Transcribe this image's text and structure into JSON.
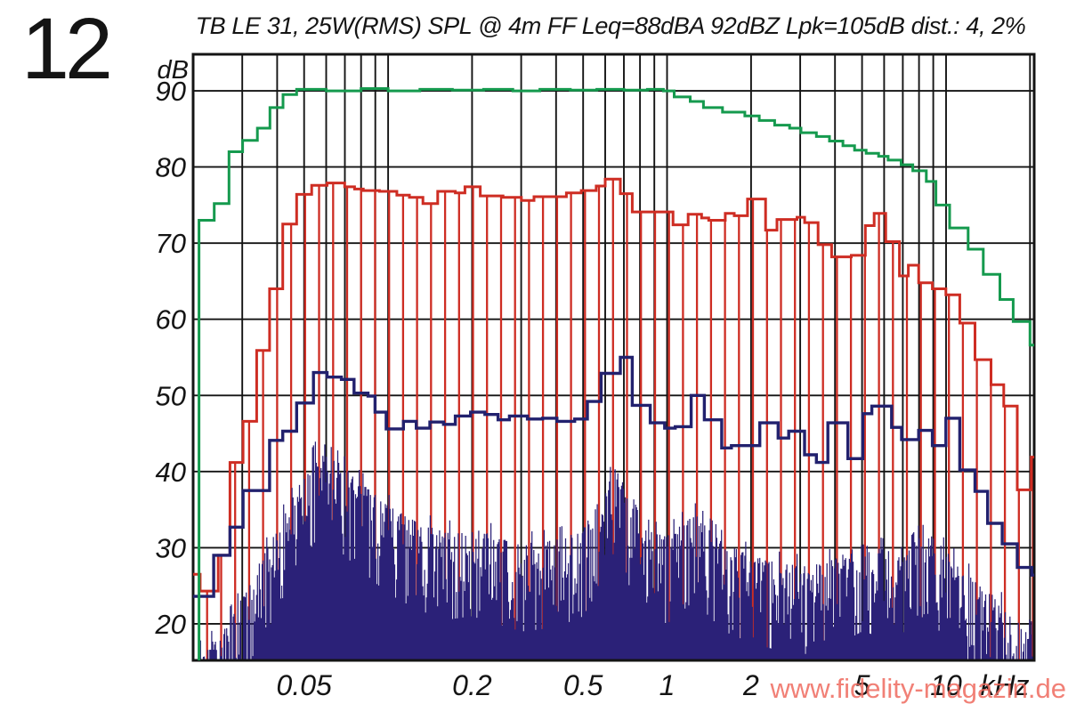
{
  "figure_number": "12",
  "title": "TB LE 31, 25W(RMS) SPL @ 4m FF Leq=88dBA 92dBZ Lpk=105dB dist.: 4, 2%",
  "watermark": "www.fidelity-magazin.de",
  "colors": {
    "green": "#159a4e",
    "red": "#ce2d23",
    "navy": "#22216e",
    "noise": "#2b2178",
    "grid": "#141414",
    "text": "#141414",
    "watermark": "#ef6a5f"
  },
  "chart_data": {
    "type": "line",
    "title": "TB LE 31, 25W(RMS) SPL @ 4m FF Leq=88dBA 92dBZ Lpk=105dB dist.: 4, 2%",
    "x_scale": "log",
    "xlim": [
      0.02,
      20.7
    ],
    "ylim": [
      15.2,
      94.8
    ],
    "x_axis_unit": "kHz",
    "y_axis_unit": "dB",
    "grid": true,
    "legend": "none",
    "x_gridlines": [
      0.03,
      0.04,
      0.05,
      0.06,
      0.07,
      0.08,
      0.09,
      0.1,
      0.2,
      0.3,
      0.4,
      0.5,
      0.6,
      0.7,
      0.8,
      0.9,
      1,
      2,
      3,
      4,
      5,
      6,
      7,
      8,
      9,
      10,
      20
    ],
    "y_gridlines": [
      20,
      30,
      40,
      50,
      60,
      70,
      80,
      90
    ],
    "x_ticks": [
      {
        "value": 0.05,
        "label": "0.05"
      },
      {
        "value": 0.2,
        "label": "0.2"
      },
      {
        "value": 0.5,
        "label": "0.5"
      },
      {
        "value": 1,
        "label": "1"
      },
      {
        "value": 2,
        "label": "2"
      },
      {
        "value": 5,
        "label": "5"
      },
      {
        "value": 10,
        "label": "10"
      }
    ],
    "y_ticks": [
      {
        "value": 90,
        "label": "90"
      },
      {
        "value": 80,
        "label": "80"
      },
      {
        "value": 70,
        "label": "70"
      },
      {
        "value": 60,
        "label": "60"
      },
      {
        "value": 50,
        "label": "50"
      },
      {
        "value": 40,
        "label": "40"
      },
      {
        "value": 30,
        "label": "30"
      },
      {
        "value": 20,
        "label": "20"
      }
    ],
    "series": [
      {
        "name": "green-curve",
        "style": "step",
        "color_key": "green",
        "starts_at_bottom": true,
        "points": [
          [
            0.021,
            73
          ],
          [
            0.0238,
            75.2
          ],
          [
            0.0269,
            82
          ],
          [
            0.0301,
            83.5
          ],
          [
            0.034,
            85.1
          ],
          [
            0.0377,
            87.8
          ],
          [
            0.042,
            89.5
          ],
          [
            0.047,
            90.2
          ],
          [
            0.06,
            90
          ],
          [
            0.08,
            90.3
          ],
          [
            0.1,
            90
          ],
          [
            0.13,
            90.2
          ],
          [
            0.17,
            90.1
          ],
          [
            0.22,
            90.2
          ],
          [
            0.28,
            90
          ],
          [
            0.35,
            90.2
          ],
          [
            0.45,
            90.1
          ],
          [
            0.56,
            90.2
          ],
          [
            0.7,
            90.1
          ],
          [
            0.85,
            90.2
          ],
          [
            0.97,
            90
          ],
          [
            1.06,
            89.2
          ],
          [
            1.21,
            88.6
          ],
          [
            1.35,
            87.8
          ],
          [
            1.58,
            87.2
          ],
          [
            1.9,
            86.7
          ],
          [
            2.14,
            86.1
          ],
          [
            2.43,
            85.5
          ],
          [
            2.75,
            85.1
          ],
          [
            3.02,
            84.5
          ],
          [
            3.43,
            84
          ],
          [
            3.82,
            83.4
          ],
          [
            4.27,
            82.8
          ],
          [
            4.7,
            82.2
          ],
          [
            5.17,
            81.8
          ],
          [
            5.73,
            81.4
          ],
          [
            6.2,
            80.9
          ],
          [
            6.9,
            80.3
          ],
          [
            7.6,
            79.5
          ],
          [
            8.5,
            78.1
          ],
          [
            9.2,
            75
          ],
          [
            10.3,
            72
          ],
          [
            12,
            69.2
          ],
          [
            13.6,
            65.9
          ],
          [
            15.6,
            62.6
          ],
          [
            17.4,
            59.7
          ],
          [
            20,
            56.6
          ]
        ]
      },
      {
        "name": "red-curve",
        "style": "step",
        "color_key": "red",
        "comb": true,
        "comb_interval_octaves": 0.1666667,
        "points": [
          [
            0.02,
            26.5
          ],
          [
            0.0212,
            24.3
          ],
          [
            0.0246,
            29
          ],
          [
            0.0271,
            41.2
          ],
          [
            0.0302,
            46.6
          ],
          [
            0.0338,
            55.9
          ],
          [
            0.0376,
            64
          ],
          [
            0.0419,
            72.5
          ],
          [
            0.047,
            76.4
          ],
          [
            0.0532,
            77.6
          ],
          [
            0.0604,
            77.9
          ],
          [
            0.0699,
            77.4
          ],
          [
            0.0758,
            77.1
          ],
          [
            0.0815,
            76.9
          ],
          [
            0.0931,
            76.8
          ],
          [
            0.1075,
            76.3
          ],
          [
            0.1192,
            76
          ],
          [
            0.1333,
            75.2
          ],
          [
            0.1506,
            76.8
          ],
          [
            0.1742,
            76.6
          ],
          [
            0.1885,
            77.4
          ],
          [
            0.214,
            76.2
          ],
          [
            0.2582,
            76
          ],
          [
            0.3003,
            75.6
          ],
          [
            0.3333,
            76.1
          ],
          [
            0.3956,
            76.1
          ],
          [
            0.4355,
            76.6
          ],
          [
            0.4926,
            76.9
          ],
          [
            0.5572,
            77.5
          ],
          [
            0.6,
            78.4
          ],
          [
            0.68,
            76.5
          ],
          [
            0.75,
            74.1
          ],
          [
            1.05,
            72.4
          ],
          [
            1.19,
            73.8
          ],
          [
            1.33,
            73.3
          ],
          [
            1.41,
            73
          ],
          [
            1.617,
            73.9
          ],
          [
            1.741,
            73.6
          ],
          [
            1.943,
            75.8
          ],
          [
            2.255,
            71.7
          ],
          [
            2.477,
            73.1
          ],
          [
            2.922,
            73.4
          ],
          [
            3.113,
            72.7
          ],
          [
            3.479,
            69.8
          ],
          [
            3.888,
            68.2
          ],
          [
            4.574,
            68.4
          ],
          [
            5.137,
            72.3
          ],
          [
            5.525,
            73.9
          ],
          [
            6.079,
            70.2
          ],
          [
            6.807,
            65.7
          ],
          [
            7.325,
            67.1
          ],
          [
            7.98,
            64.8
          ],
          [
            8.93,
            64
          ],
          [
            9.99,
            63.2
          ],
          [
            11.2,
            59.5
          ],
          [
            12.7,
            54.7
          ],
          [
            14.5,
            51.4
          ],
          [
            16.1,
            48.6
          ],
          [
            18,
            37.6
          ],
          [
            20.2,
            41.9
          ]
        ]
      },
      {
        "name": "navy-curve",
        "style": "step",
        "color_key": "navy",
        "points": [
          [
            0.02,
            23.6
          ],
          [
            0.0237,
            29
          ],
          [
            0.0271,
            32.7
          ],
          [
            0.0302,
            37.5
          ],
          [
            0.0376,
            44.1
          ],
          [
            0.0419,
            45.3
          ],
          [
            0.047,
            49
          ],
          [
            0.054,
            53
          ],
          [
            0.0604,
            52.4
          ],
          [
            0.068,
            52.1
          ],
          [
            0.0755,
            50.3
          ],
          [
            0.0847,
            49.9
          ],
          [
            0.0898,
            47.8
          ],
          [
            0.0984,
            45.6
          ],
          [
            0.1135,
            46.6
          ],
          [
            0.1261,
            45.7
          ],
          [
            0.1411,
            46.5
          ],
          [
            0.1579,
            46.2
          ],
          [
            0.1742,
            47.3
          ],
          [
            0.1975,
            47.8
          ],
          [
            0.2222,
            47.5
          ],
          [
            0.2477,
            46.8
          ],
          [
            0.2723,
            47.3
          ],
          [
            0.3157,
            46.9
          ],
          [
            0.3577,
            47
          ],
          [
            0.403,
            46.6
          ],
          [
            0.4665,
            46.9
          ],
          [
            0.518,
            49.2
          ],
          [
            0.58,
            52.9
          ],
          [
            0.68,
            55
          ],
          [
            0.75,
            48.7
          ],
          [
            0.87,
            46.4
          ],
          [
            0.98,
            45.7
          ],
          [
            1.07,
            45.9
          ],
          [
            1.22,
            50
          ],
          [
            1.36,
            46.8
          ],
          [
            1.57,
            43.1
          ],
          [
            1.7,
            43.4
          ],
          [
            2.15,
            46.4
          ],
          [
            2.5,
            44.4
          ],
          [
            2.73,
            45.3
          ],
          [
            3.11,
            42.2
          ],
          [
            3.43,
            41.2
          ],
          [
            3.77,
            46.4
          ],
          [
            4.45,
            41.7
          ],
          [
            5.03,
            47.6
          ],
          [
            5.42,
            48.6
          ],
          [
            6.38,
            45.8
          ],
          [
            6.93,
            44.2
          ],
          [
            7.98,
            45.4
          ],
          [
            8.93,
            43.4
          ],
          [
            9.99,
            47
          ],
          [
            11.2,
            40.2
          ],
          [
            12.7,
            37.4
          ],
          [
            14.1,
            33.2
          ],
          [
            15.9,
            30.5
          ],
          [
            18,
            27.4
          ],
          [
            20.3,
            26.4
          ]
        ]
      }
    ],
    "noise_floor_envelope": [
      [
        0.02,
        17
      ],
      [
        0.025,
        20
      ],
      [
        0.03,
        25
      ],
      [
        0.04,
        34
      ],
      [
        0.05,
        41
      ],
      [
        0.055,
        44
      ],
      [
        0.065,
        43
      ],
      [
        0.08,
        40
      ],
      [
        0.1,
        37
      ],
      [
        0.125,
        35
      ],
      [
        0.16,
        33.5
      ],
      [
        0.2,
        34
      ],
      [
        0.3,
        32
      ],
      [
        0.4,
        32.5
      ],
      [
        0.5,
        34
      ],
      [
        0.6,
        39
      ],
      [
        0.65,
        42
      ],
      [
        0.7,
        40
      ],
      [
        0.8,
        34
      ],
      [
        1.0,
        33
      ],
      [
        1.25,
        36
      ],
      [
        1.6,
        32
      ],
      [
        2,
        30.5
      ],
      [
        2.5,
        29.5
      ],
      [
        3.2,
        29
      ],
      [
        4,
        30
      ],
      [
        5,
        32
      ],
      [
        6.3,
        31
      ],
      [
        7,
        30
      ],
      [
        8,
        33
      ],
      [
        9,
        33
      ],
      [
        10,
        31
      ],
      [
        12,
        28
      ],
      [
        14,
        26
      ],
      [
        16,
        24
      ],
      [
        18,
        22
      ],
      [
        20.7,
        20
      ]
    ]
  }
}
